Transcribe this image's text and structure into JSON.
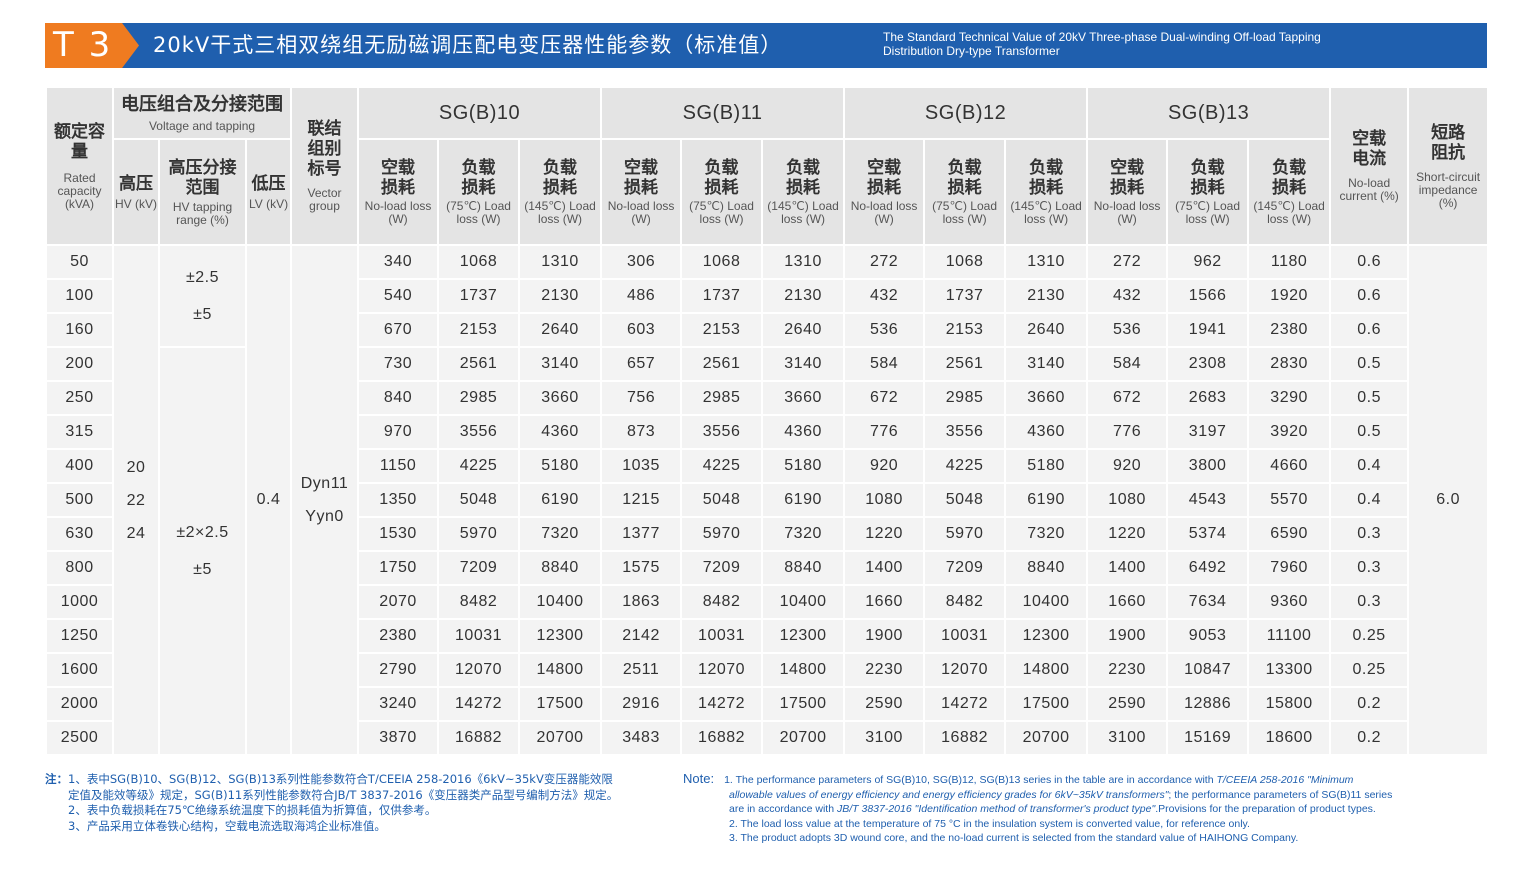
{
  "header": {
    "badge": "T 3",
    "title_cn": "20kV干式三相双绕组无励磁调压配电变压器性能参数（标准值）",
    "title_en_1": "The Standard Technical Value of 20kV Three-phase Dual-winding Off-load Tapping",
    "title_en_2": "Distribution Dry-type Transformer"
  },
  "columns": {
    "rated_cn": "额定容量",
    "rated_en": "Rated capacity (kVA)",
    "voltage_cn": "电压组合及分接范围",
    "voltage_en": "Voltage and tapping",
    "hv_cn": "高压",
    "hv_en": "HV (kV)",
    "tap_cn": "高压分接范围",
    "tap_en": "HV tapping range (%)",
    "lv_cn": "低压",
    "lv_en": "LV (kV)",
    "vector_cn": "联结组别标号",
    "vector_en": "Vector group",
    "noload_cn": "空载损耗",
    "noload_en": "No-load loss (W)",
    "load_cn": "负载损耗",
    "load75_en": "(75℃) Load loss (W)",
    "load145_en": "(145℃) Load loss (W)",
    "nlc_cn": "空载电流",
    "nlc_en": "No-load current (%)",
    "sci_cn": "短路阻抗",
    "sci_en": "Short-circuit impedance (%)",
    "series": [
      "SG(B)10",
      "SG(B)11",
      "SG(B)12",
      "SG(B)13"
    ]
  },
  "merged": {
    "hv": [
      "20",
      "22",
      "24"
    ],
    "tap_upper": [
      "±2.5",
      "±5"
    ],
    "tap_lower": [
      "±2×2.5",
      "±5"
    ],
    "lv": "0.4",
    "vector": [
      "Dyn11",
      "Yyn0"
    ],
    "impedance": "6.0"
  },
  "rows": [
    {
      "cap": "50",
      "v": [
        "340",
        "1068",
        "1310",
        "306",
        "1068",
        "1310",
        "272",
        "1068",
        "1310",
        "272",
        "962",
        "1180"
      ],
      "nlc": "0.6"
    },
    {
      "cap": "100",
      "v": [
        "540",
        "1737",
        "2130",
        "486",
        "1737",
        "2130",
        "432",
        "1737",
        "2130",
        "432",
        "1566",
        "1920"
      ],
      "nlc": "0.6"
    },
    {
      "cap": "160",
      "v": [
        "670",
        "2153",
        "2640",
        "603",
        "2153",
        "2640",
        "536",
        "2153",
        "2640",
        "536",
        "1941",
        "2380"
      ],
      "nlc": "0.6"
    },
    {
      "cap": "200",
      "v": [
        "730",
        "2561",
        "3140",
        "657",
        "2561",
        "3140",
        "584",
        "2561",
        "3140",
        "584",
        "2308",
        "2830"
      ],
      "nlc": "0.5"
    },
    {
      "cap": "250",
      "v": [
        "840",
        "2985",
        "3660",
        "756",
        "2985",
        "3660",
        "672",
        "2985",
        "3660",
        "672",
        "2683",
        "3290"
      ],
      "nlc": "0.5"
    },
    {
      "cap": "315",
      "v": [
        "970",
        "3556",
        "4360",
        "873",
        "3556",
        "4360",
        "776",
        "3556",
        "4360",
        "776",
        "3197",
        "3920"
      ],
      "nlc": "0.5"
    },
    {
      "cap": "400",
      "v": [
        "1150",
        "4225",
        "5180",
        "1035",
        "4225",
        "5180",
        "920",
        "4225",
        "5180",
        "920",
        "3800",
        "4660"
      ],
      "nlc": "0.4"
    },
    {
      "cap": "500",
      "v": [
        "1350",
        "5048",
        "6190",
        "1215",
        "5048",
        "6190",
        "1080",
        "5048",
        "6190",
        "1080",
        "4543",
        "5570"
      ],
      "nlc": "0.4"
    },
    {
      "cap": "630",
      "v": [
        "1530",
        "5970",
        "7320",
        "1377",
        "5970",
        "7320",
        "1220",
        "5970",
        "7320",
        "1220",
        "5374",
        "6590"
      ],
      "nlc": "0.3"
    },
    {
      "cap": "800",
      "v": [
        "1750",
        "7209",
        "8840",
        "1575",
        "7209",
        "8840",
        "1400",
        "7209",
        "8840",
        "1400",
        "6492",
        "7960"
      ],
      "nlc": "0.3"
    },
    {
      "cap": "1000",
      "v": [
        "2070",
        "8482",
        "10400",
        "1863",
        "8482",
        "10400",
        "1660",
        "8482",
        "10400",
        "1660",
        "7634",
        "9360"
      ],
      "nlc": "0.3"
    },
    {
      "cap": "1250",
      "v": [
        "2380",
        "10031",
        "12300",
        "2142",
        "10031",
        "12300",
        "1900",
        "10031",
        "12300",
        "1900",
        "9053",
        "11100"
      ],
      "nlc": "0.25"
    },
    {
      "cap": "1600",
      "v": [
        "2790",
        "12070",
        "14800",
        "2511",
        "12070",
        "14800",
        "2230",
        "12070",
        "14800",
        "2230",
        "10847",
        "13300"
      ],
      "nlc": "0.25"
    },
    {
      "cap": "2000",
      "v": [
        "3240",
        "14272",
        "17500",
        "2916",
        "14272",
        "17500",
        "2590",
        "14272",
        "17500",
        "2590",
        "12886",
        "15800"
      ],
      "nlc": "0.2"
    },
    {
      "cap": "2500",
      "v": [
        "3870",
        "16882",
        "20700",
        "3483",
        "16882",
        "20700",
        "3100",
        "16882",
        "20700",
        "3100",
        "15169",
        "18600"
      ],
      "nlc": "0.2"
    }
  ],
  "notes_cn": {
    "label": "注：",
    "l1": "1、表中SG(B)10、SG(B)12、SG(B)13系列性能参数符合T/CEEIA 258-2016《6kV~35kV变压器能效限",
    "l2": "定值及能效等级》规定，SG(B)11系列性能参数符合JB/T 3837-2016《变压器类产品型号编制方法》规定。",
    "l3": "2、表中负载损耗在75℃绝缘系统温度下的损耗值为折算值，仅供参考。",
    "l4": "3、产品采用立体卷铁心结构，空载电流选取海鸿企业标准值。"
  },
  "notes_en": {
    "label": "Note:",
    "l1a": "1. The performance parameters of SG(B)10, SG(B)12, SG(B)13 series in the table are in accordance with ",
    "l1b": "T/CEEIA 258-2016 \"Minimum",
    "l2a": "allowable values of energy efficiency and energy efficiency grades for 6kV~35kV transformers\"",
    "l2b": "; the performance parameters of SG(B)11 series",
    "l3a": "are in accordance with ",
    "l3b": "JB/T 3837-2016 \"Identification method of transformer's product type\"",
    "l3c": ".Provisions for the preparation of product types.",
    "l4": "2. The load loss value at the temperature of 75 °C in the insulation system is converted value, for reference only.",
    "l5": "3. The product adopts 3D wound core, and the no-load current is selected from the standard value of HAIHONG Company."
  }
}
